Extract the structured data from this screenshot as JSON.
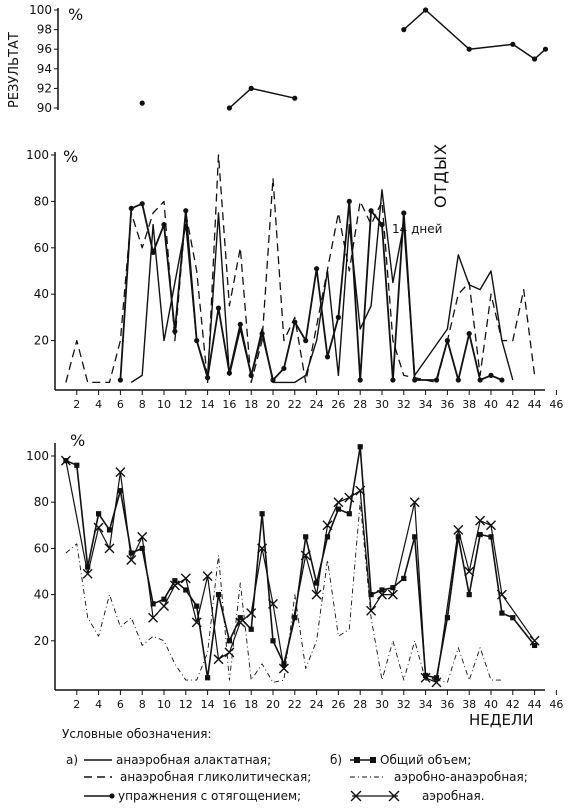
{
  "chart_data": [
    {
      "type": "line",
      "title": "",
      "ylabel": "РЕЗУЛЬТАТ",
      "yunit": "%",
      "ylim": [
        90,
        100
      ],
      "yticks": [
        90,
        92,
        94,
        96,
        98,
        100
      ],
      "series": [
        {
          "name": "",
          "points": [
            [
              8,
              90.5
            ]
          ]
        },
        {
          "name": "",
          "points": [
            [
              16,
              90
            ],
            [
              18,
              92
            ],
            [
              22,
              91
            ]
          ]
        },
        {
          "name": "",
          "points": [
            [
              32,
              98
            ],
            [
              34,
              100
            ],
            [
              38,
              96
            ],
            [
              42,
              96.5
            ],
            [
              44,
              95
            ],
            [
              45,
              96
            ]
          ]
        }
      ]
    },
    {
      "type": "line",
      "title": "",
      "yunit": "%",
      "ylim": [
        0,
        100
      ],
      "yticks": [
        20,
        40,
        60,
        80,
        100
      ],
      "xticks": [
        2,
        4,
        6,
        8,
        10,
        12,
        14,
        16,
        18,
        20,
        22,
        24,
        26,
        28,
        30,
        32,
        34,
        36,
        38,
        40,
        42,
        44,
        46
      ],
      "annotations": [
        "ОТДЫХ",
        "14 дней"
      ],
      "series": [
        {
          "name": "анаэробная алактатная",
          "style": "solid",
          "points": [
            [
              7,
              2
            ],
            [
              8,
              5
            ],
            [
              9,
              70
            ],
            [
              10,
              20
            ],
            [
              11,
              45
            ],
            [
              12,
              70
            ],
            [
              13,
              20
            ],
            [
              14,
              5
            ],
            [
              15,
              75
            ],
            [
              16,
              5
            ],
            [
              17,
              25
            ],
            [
              18,
              5
            ],
            [
              19,
              25
            ],
            [
              20,
              2
            ],
            [
              22,
              2
            ],
            [
              23,
              5
            ],
            [
              24,
              20
            ],
            [
              25,
              50
            ],
            [
              26,
              5
            ],
            [
              27,
              70
            ],
            [
              28,
              25
            ],
            [
              29,
              35
            ],
            [
              30,
              85
            ],
            [
              31,
              45
            ],
            [
              32,
              70
            ],
            [
              33,
              5
            ],
            [
              36,
              25
            ],
            [
              37,
              57
            ],
            [
              38,
              44
            ],
            [
              39,
              42
            ],
            [
              40,
              50
            ],
            [
              41,
              20
            ],
            [
              42,
              3
            ]
          ]
        },
        {
          "name": "анаэробная гликолитическая",
          "style": "dashed",
          "points": [
            [
              1,
              2
            ],
            [
              2,
              20
            ],
            [
              3,
              2
            ],
            [
              5,
              2
            ],
            [
              6,
              20
            ],
            [
              7,
              75
            ],
            [
              8,
              60
            ],
            [
              9,
              75
            ],
            [
              10,
              80
            ],
            [
              11,
              20
            ],
            [
              12,
              75
            ],
            [
              13,
              50
            ],
            [
              14,
              2
            ],
            [
              15,
              100
            ],
            [
              16,
              35
            ],
            [
              17,
              60
            ],
            [
              18,
              2
            ],
            [
              19,
              20
            ],
            [
              20,
              90
            ],
            [
              21,
              20
            ],
            [
              22,
              30
            ],
            [
              23,
              2
            ],
            [
              26,
              75
            ],
            [
              27,
              50
            ],
            [
              28,
              80
            ],
            [
              29,
              70
            ],
            [
              30,
              80
            ],
            [
              31,
              20
            ],
            [
              32,
              5
            ],
            [
              35,
              2
            ],
            [
              36,
              20
            ],
            [
              37,
              40
            ],
            [
              38,
              45
            ],
            [
              39,
              5
            ],
            [
              40,
              40
            ],
            [
              41,
              20
            ],
            [
              42,
              20
            ],
            [
              43,
              42
            ],
            [
              44,
              5
            ]
          ]
        },
        {
          "name": "упражнения с отягощением",
          "style": "solid-dot",
          "points": [
            [
              6,
              3
            ],
            [
              7,
              77
            ],
            [
              8,
              79
            ],
            [
              9,
              58
            ],
            [
              10,
              70
            ],
            [
              11,
              24
            ],
            [
              12,
              76
            ],
            [
              13,
              20
            ],
            [
              14,
              4
            ],
            [
              15,
              34
            ],
            [
              16,
              6
            ],
            [
              17,
              27
            ],
            [
              18,
              5
            ],
            [
              19,
              23
            ],
            [
              20,
              3
            ],
            [
              21,
              8
            ],
            [
              22,
              28
            ],
            [
              23,
              20
            ],
            [
              24,
              51
            ],
            [
              25,
              13
            ],
            [
              26,
              30
            ],
            [
              27,
              80
            ],
            [
              28,
              3
            ],
            [
              29,
              76
            ],
            [
              30,
              70
            ],
            [
              31,
              3
            ],
            [
              32,
              75
            ],
            [
              33,
              3
            ],
            [
              35,
              3
            ],
            [
              36,
              20
            ],
            [
              37,
              3
            ],
            [
              38,
              23
            ],
            [
              39,
              3
            ],
            [
              40,
              5
            ],
            [
              41,
              3
            ]
          ]
        }
      ]
    },
    {
      "type": "line",
      "title": "",
      "yunit": "%",
      "xlabel": "НЕДЕЛИ",
      "ylim": [
        0,
        100
      ],
      "yticks": [
        20,
        40,
        60,
        80,
        100
      ],
      "xticks": [
        2,
        4,
        6,
        8,
        10,
        12,
        14,
        16,
        18,
        20,
        22,
        24,
        26,
        28,
        30,
        32,
        34,
        36,
        38,
        40,
        42,
        44,
        46
      ],
      "series": [
        {
          "name": "Общий объем",
          "style": "solid-square",
          "points": [
            [
              1,
              98
            ],
            [
              2,
              96
            ],
            [
              3,
              52
            ],
            [
              4,
              75
            ],
            [
              5,
              68
            ],
            [
              6,
              85
            ],
            [
              7,
              58
            ],
            [
              8,
              60
            ],
            [
              9,
              36
            ],
            [
              10,
              38
            ],
            [
              11,
              46
            ],
            [
              12,
              42
            ],
            [
              13,
              35
            ],
            [
              14,
              4
            ],
            [
              15,
              40
            ],
            [
              16,
              20
            ],
            [
              17,
              30
            ],
            [
              18,
              25
            ],
            [
              19,
              75
            ],
            [
              20,
              20
            ],
            [
              21,
              10
            ],
            [
              22,
              30
            ],
            [
              23,
              65
            ],
            [
              24,
              45
            ],
            [
              25,
              65
            ],
            [
              26,
              77
            ],
            [
              27,
              75
            ],
            [
              28,
              104
            ],
            [
              29,
              40
            ],
            [
              30,
              42
            ],
            [
              31,
              43
            ],
            [
              32,
              47
            ],
            [
              33,
              65
            ],
            [
              34,
              5
            ],
            [
              35,
              4
            ],
            [
              36,
              30
            ],
            [
              37,
              65
            ],
            [
              38,
              40
            ],
            [
              39,
              66
            ],
            [
              40,
              65
            ],
            [
              41,
              32
            ],
            [
              42,
              30
            ],
            [
              44,
              18
            ]
          ]
        },
        {
          "name": "аэробно-анаэробная",
          "style": "dash-dot",
          "points": [
            [
              1,
              58
            ],
            [
              2,
              62
            ],
            [
              3,
              30
            ],
            [
              4,
              22
            ],
            [
              5,
              40
            ],
            [
              6,
              26
            ],
            [
              7,
              30
            ],
            [
              8,
              18
            ],
            [
              9,
              22
            ],
            [
              10,
              20
            ],
            [
              11,
              10
            ],
            [
              12,
              3
            ],
            [
              13,
              3
            ],
            [
              14,
              15
            ],
            [
              15,
              57
            ],
            [
              16,
              3
            ],
            [
              17,
              45
            ],
            [
              18,
              3
            ],
            [
              19,
              10
            ],
            [
              20,
              2
            ],
            [
              21,
              3
            ],
            [
              22,
              40
            ],
            [
              23,
              8
            ],
            [
              24,
              20
            ],
            [
              25,
              55
            ],
            [
              26,
              22
            ],
            [
              27,
              25
            ],
            [
              28,
              80
            ],
            [
              29,
              30
            ],
            [
              30,
              3
            ],
            [
              31,
              20
            ],
            [
              32,
              3
            ],
            [
              33,
              20
            ],
            [
              34,
              3
            ],
            [
              35,
              3
            ],
            [
              36,
              2
            ],
            [
              37,
              17
            ],
            [
              38,
              3
            ],
            [
              39,
              17
            ],
            [
              40,
              3
            ],
            [
              41,
              3
            ]
          ]
        },
        {
          "name": "аэробная",
          "style": "solid-x",
          "points": [
            [
              1,
              98
            ],
            [
              3,
              49
            ],
            [
              4,
              69
            ],
            [
              5,
              60
            ],
            [
              6,
              93
            ],
            [
              7,
              55
            ],
            [
              8,
              65
            ],
            [
              9,
              30
            ],
            [
              10,
              35
            ],
            [
              11,
              44
            ],
            [
              12,
              47
            ],
            [
              13,
              28
            ],
            [
              14,
              48
            ],
            [
              15,
              12
            ],
            [
              16,
              15
            ],
            [
              17,
              28
            ],
            [
              18,
              32
            ],
            [
              19,
              60
            ],
            [
              20,
              36
            ],
            [
              21,
              8
            ],
            [
              23,
              57
            ],
            [
              24,
              40
            ],
            [
              25,
              70
            ],
            [
              26,
              80
            ],
            [
              27,
              82
            ],
            [
              28,
              85
            ],
            [
              29,
              33
            ],
            [
              30,
              40
            ],
            [
              31,
              40
            ],
            [
              33,
              80
            ],
            [
              34,
              4
            ],
            [
              35,
              2
            ],
            [
              37,
              68
            ],
            [
              38,
              50
            ],
            [
              39,
              72
            ],
            [
              40,
              70
            ],
            [
              41,
              40
            ],
            [
              44,
              20
            ]
          ]
        }
      ]
    }
  ],
  "legend": {
    "title": "Условные обозначения:",
    "prefix_a": "а)",
    "prefix_b": "б)",
    "items": [
      "анаэробная алактатная;",
      "анаэробная гликолитическая;",
      "упражнения с отягощением;",
      "Общий объем;",
      "аэробно-анаэробная;",
      "аэробная."
    ]
  }
}
